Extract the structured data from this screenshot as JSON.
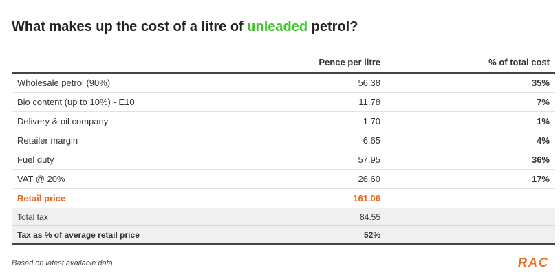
{
  "title": {
    "before": "What makes up the cost of a litre of ",
    "highlight": "unleaded",
    "after": " petrol?"
  },
  "table": {
    "headers": {
      "pence": "Pence per litre",
      "percent": "% of total cost"
    },
    "rows": [
      [
        "Wholesale petrol (90%)",
        "56.38",
        "35%"
      ],
      [
        "Bio content (up to 10%) - E10",
        "11.78",
        "7%"
      ],
      [
        "Delivery & oil company",
        "1.70",
        "1%"
      ],
      [
        "Retailer margin",
        "6.65",
        "4%"
      ],
      [
        "Fuel duty",
        "57.95",
        "36%"
      ],
      [
        "VAT @ 20%",
        "26.60",
        "17%"
      ]
    ],
    "total": [
      "Retail price",
      "161.06"
    ],
    "tax_rows": [
      [
        "Total tax",
        "84.55"
      ],
      [
        "Tax as % of average retail price",
        "52%"
      ]
    ]
  },
  "note": "Based on latest available data",
  "logo": "RAC"
}
